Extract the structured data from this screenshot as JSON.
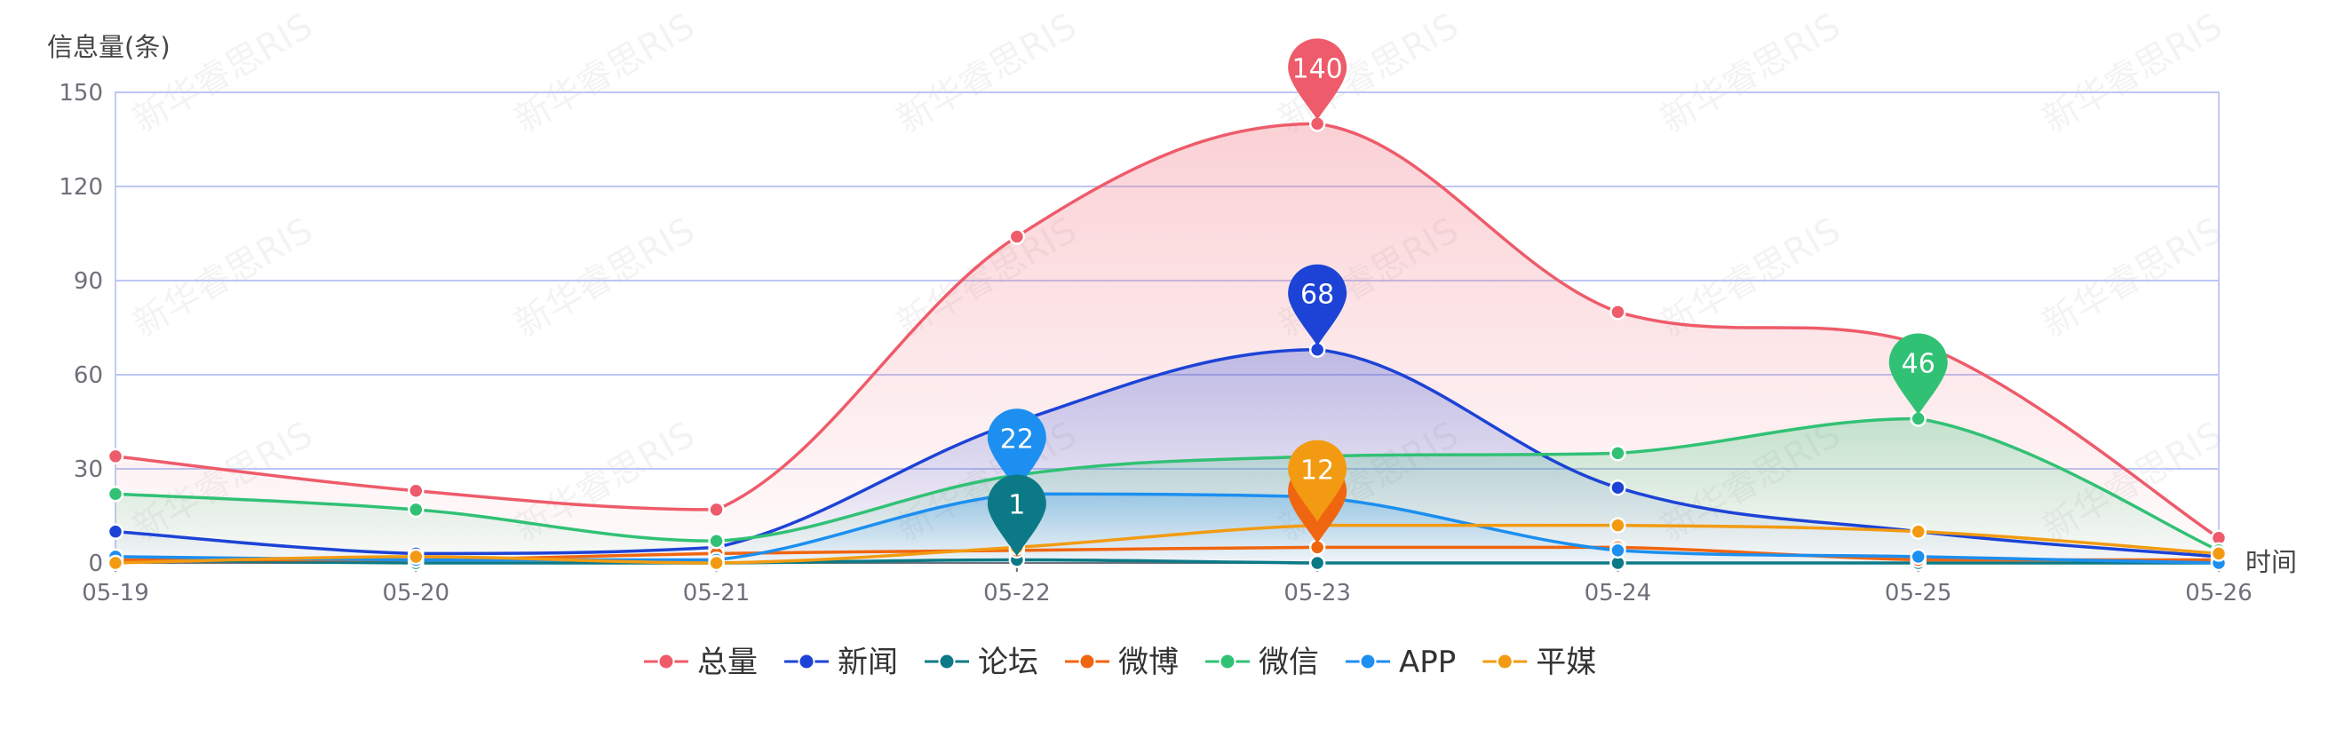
{
  "chart_data": {
    "type": "line",
    "smooth": true,
    "ylabel": "信息量(条)",
    "xlabel": "时间",
    "categories": [
      "05-19",
      "05-20",
      "05-21",
      "05-22",
      "05-23",
      "05-24",
      "05-25",
      "05-26"
    ],
    "ylim": [
      0,
      150
    ],
    "yticks": [
      0,
      30,
      60,
      90,
      120,
      150
    ],
    "grid": true,
    "legend_position": "bottom-center",
    "series": [
      {
        "name": "总量",
        "color": "#ee5b6a",
        "area": true,
        "values": [
          34,
          23,
          17,
          104,
          140,
          80,
          70,
          8
        ]
      },
      {
        "name": "新闻",
        "color": "#1d43d6",
        "area": true,
        "values": [
          10,
          3,
          5,
          45,
          68,
          24,
          10,
          2
        ]
      },
      {
        "name": "论坛",
        "color": "#0c7a86",
        "area": false,
        "values": [
          1,
          0,
          0,
          1,
          0,
          0,
          0,
          0
        ]
      },
      {
        "name": "微博",
        "color": "#f0650f",
        "area": false,
        "values": [
          1,
          1,
          3,
          4,
          5,
          5,
          1,
          1
        ]
      },
      {
        "name": "微信",
        "color": "#31c175",
        "area": true,
        "values": [
          22,
          17,
          7,
          28,
          34,
          35,
          46,
          4
        ]
      },
      {
        "name": "APP",
        "color": "#1c8ff0",
        "area": true,
        "values": [
          2,
          1,
          1,
          22,
          21,
          4,
          2,
          0
        ]
      },
      {
        "name": "平媒",
        "color": "#f29b12",
        "area": false,
        "values": [
          0,
          2,
          0,
          5,
          12,
          12,
          10,
          3
        ]
      }
    ],
    "max_markers": [
      {
        "series": "总量",
        "category": "05-23",
        "value": 140,
        "label": "140"
      },
      {
        "series": "新闻",
        "category": "05-23",
        "value": 68,
        "label": "68"
      },
      {
        "series": "APP",
        "category": "05-22",
        "value": 22,
        "label": "22"
      },
      {
        "series": "论坛",
        "category": "05-22",
        "value": 1,
        "label": "1"
      },
      {
        "series": "微博",
        "category": "05-23",
        "value": 5,
        "label": ""
      },
      {
        "series": "平媒",
        "category": "05-23",
        "value": 12,
        "label": "12"
      },
      {
        "series": "微信",
        "category": "05-25",
        "value": 46,
        "label": "46"
      }
    ]
  },
  "watermark": "新华睿思RIS"
}
